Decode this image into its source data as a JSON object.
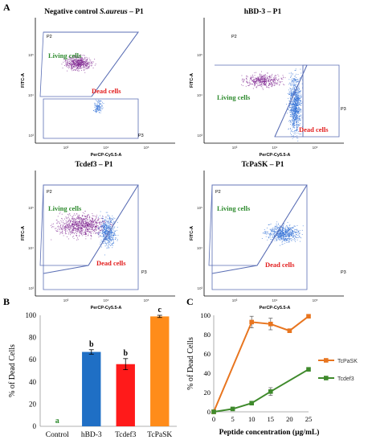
{
  "panels": {
    "a": "A",
    "b": "B",
    "c": "C"
  },
  "flow_plots": [
    {
      "title_plain": "Negative control ",
      "title_italic": "S.aureus",
      "title_suffix": " – P1",
      "living": "Living cells",
      "dead": "Dead cells",
      "p2": "P2",
      "p3": "P3",
      "xaxis": "PerCP-Cy5.5-A",
      "yaxis": "FITC-A"
    },
    {
      "title_plain": "hBD-3 – P1",
      "title_italic": "",
      "title_suffix": "",
      "living": "Living cells",
      "dead": "Dead cells",
      "p2": "P2",
      "p3": "P3",
      "xaxis": "PerCP-Cy5.5-A",
      "yaxis": "FITC-A"
    },
    {
      "title_plain": "Tcdef3 – P1",
      "title_italic": "",
      "title_suffix": "",
      "living": "Living cells",
      "dead": "Dead cells",
      "p2": "P2",
      "p3": "P3",
      "xaxis": "PerCP-Cy5.5-A",
      "yaxis": "FITC-A"
    },
    {
      "title_plain": "TcPaSK – P1",
      "title_italic": "",
      "title_suffix": "",
      "living": "Living cells",
      "dead": "Dead cells",
      "p2": "P2",
      "p3": "P3",
      "xaxis": "PerCP-Cy5.5-A",
      "yaxis": "FITC-A"
    }
  ],
  "flow_ticks": [
    "10³",
    "10⁴",
    "10⁵"
  ],
  "colors": {
    "living": "#7a1e8c",
    "dead": "#2f6fd6",
    "gate": "#5b6fb5"
  },
  "chart_data": [
    {
      "type": "bar",
      "categories": [
        "Control",
        "hBD-3",
        "Tcdef3",
        "TcPaSK"
      ],
      "values": [
        0,
        67,
        56,
        99
      ],
      "errors": [
        0,
        2,
        5,
        1
      ],
      "letters": [
        "a",
        "b",
        "b",
        "c"
      ],
      "colors": [
        "#4a7fc1",
        "#1f6fc5",
        "#ff1a1a",
        "#ff8c1a"
      ],
      "letter_color_first": "#2e8b2e",
      "ylabel": "% of Dead Cells",
      "yticks": [
        0,
        20,
        40,
        60,
        80,
        100
      ],
      "ylim": [
        0,
        100
      ]
    },
    {
      "type": "line",
      "x": [
        0,
        5,
        10,
        15,
        20,
        25
      ],
      "series": [
        {
          "name": "TcPaSK",
          "color": "#e8751f",
          "values": [
            0,
            null,
            93,
            91,
            84,
            99
          ],
          "errors": [
            0,
            0,
            6,
            6,
            2,
            1
          ]
        },
        {
          "name": "Tcdef3",
          "color": "#3f8a2c",
          "values": [
            0,
            3,
            9,
            21,
            null,
            44
          ],
          "errors": [
            0,
            1,
            1,
            4,
            0,
            1
          ]
        }
      ],
      "xlabel": "Peptide concentration (µg/mL)",
      "ylabel": "% of Dead Cells",
      "xticks": [
        0,
        5,
        10,
        15,
        20,
        25
      ],
      "yticks": [
        0,
        20,
        40,
        60,
        80,
        100
      ],
      "xlim": [
        0,
        25
      ],
      "ylim": [
        0,
        100
      ],
      "legend_position": "right"
    }
  ]
}
